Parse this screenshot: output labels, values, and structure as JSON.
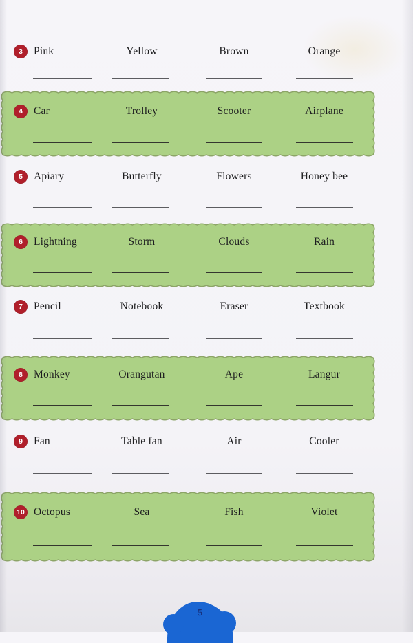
{
  "page": {
    "page_number": "5",
    "colors": {
      "band_fill": "#acd185",
      "band_border": "#8ca467",
      "number_circle": "#b01f2b",
      "number_text": "#ffffff",
      "page_marker_blue": "#1a66d3",
      "page_number_color": "#16317f"
    },
    "rows": [
      {
        "number": "3",
        "highlighted": false,
        "words": [
          "Pink",
          "Yellow",
          "Brown",
          "Orange"
        ]
      },
      {
        "number": "4",
        "highlighted": true,
        "words": [
          "Car",
          "Trolley",
          "Scooter",
          "Airplane"
        ]
      },
      {
        "number": "5",
        "highlighted": false,
        "words": [
          "Apiary",
          "Butterfly",
          "Flowers",
          "Honey bee"
        ]
      },
      {
        "number": "6",
        "highlighted": true,
        "words": [
          "Lightning",
          "Storm",
          "Clouds",
          "Rain"
        ]
      },
      {
        "number": "7",
        "highlighted": false,
        "words": [
          "Pencil",
          "Notebook",
          "Eraser",
          "Textbook"
        ]
      },
      {
        "number": "8",
        "highlighted": true,
        "words": [
          "Monkey",
          "Orangutan",
          "Ape",
          "Langur"
        ]
      },
      {
        "number": "9",
        "highlighted": false,
        "words": [
          "Fan",
          "Table fan",
          "Air",
          "Cooler"
        ]
      },
      {
        "number": "10",
        "highlighted": true,
        "words": [
          "Octopus",
          "Sea",
          "Fish",
          "Violet"
        ]
      }
    ]
  }
}
